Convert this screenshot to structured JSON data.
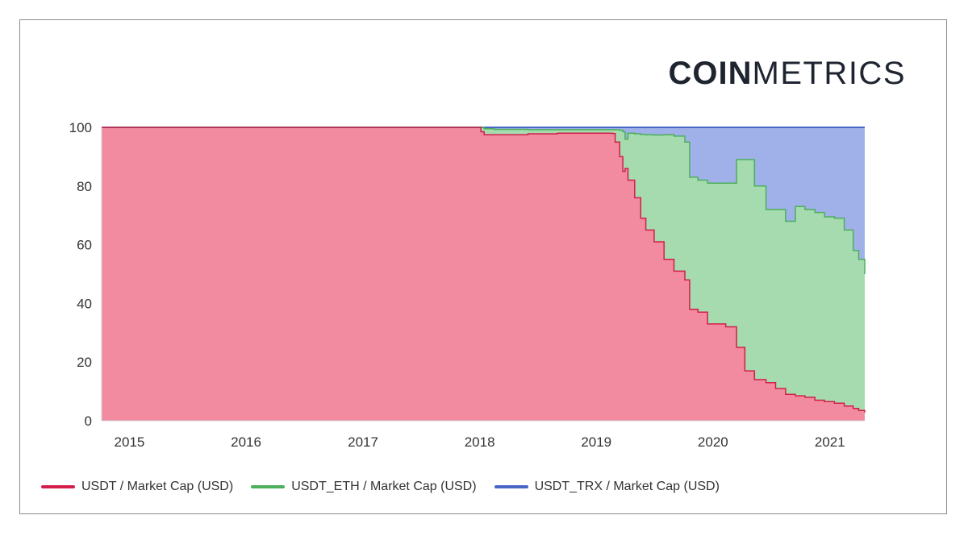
{
  "logo": {
    "bold": "COIN",
    "light": "METRICS"
  },
  "colors": {
    "usdt_fill": "#f28aa0",
    "usdt_line": "#d21e48",
    "eth_fill": "#a6dbb0",
    "eth_line": "#4caf5a",
    "trx_fill": "#9fb1e8",
    "trx_line": "#4a66c4",
    "watermark": "#bfe3c6"
  },
  "chart_data": {
    "type": "area",
    "stacked": true,
    "y_ticks": [
      "0",
      "20",
      "40",
      "60",
      "80",
      "100"
    ],
    "ylim": [
      0,
      100
    ],
    "x_ticks": [
      "2015",
      "2016",
      "2017",
      "2018",
      "2019",
      "2020",
      "2021"
    ],
    "xlim": [
      "2014-10-06",
      "2021-04-20"
    ],
    "grid": false,
    "legend_position": "bottom-left",
    "legend": [
      "USDT / Market Cap (USD)",
      "USDT_ETH / Market Cap (USD)",
      "USDT_TRX / Market Cap (USD)"
    ],
    "dates": [
      "2014-10-06",
      "2017-12-31",
      "2018-01-05",
      "2018-01-15",
      "2018-02-15",
      "2018-06-01",
      "2018-09-01",
      "2019-02-20",
      "2019-03-01",
      "2019-03-15",
      "2019-03-25",
      "2019-04-01",
      "2019-04-10",
      "2019-05-01",
      "2019-05-20",
      "2019-06-05",
      "2019-07-01",
      "2019-08-01",
      "2019-09-01",
      "2019-10-05",
      "2019-10-20",
      "2019-11-15",
      "2019-12-15",
      "2020-01-15",
      "2020-02-10",
      "2020-03-15",
      "2020-04-10",
      "2020-05-10",
      "2020-06-15",
      "2020-07-15",
      "2020-08-15",
      "2020-09-15",
      "2020-10-15",
      "2020-11-15",
      "2020-12-15",
      "2021-01-15",
      "2021-02-15",
      "2021-03-15",
      "2021-04-01",
      "2021-04-20"
    ],
    "usdt": [
      100,
      100,
      98.5,
      97.5,
      97.5,
      97.8,
      98,
      97.9,
      95,
      90,
      85,
      86,
      82,
      76,
      69,
      65,
      61,
      55,
      51,
      48,
      38,
      37,
      33,
      33,
      32,
      25,
      17,
      14,
      13,
      11,
      9,
      8.5,
      8,
      7,
      6.5,
      6,
      5,
      4.2,
      3.5,
      2.8
    ],
    "usdt_eth": [
      100,
      100,
      100,
      99.5,
      99.3,
      99.2,
      99.2,
      99.2,
      99.2,
      99.0,
      98.5,
      96,
      98,
      97.8,
      97.6,
      97.5,
      97.4,
      97.5,
      97,
      95,
      83,
      82,
      81,
      81,
      81,
      89,
      89,
      80,
      72,
      72,
      68,
      73,
      72,
      71,
      69.5,
      69,
      65,
      58,
      55,
      50
    ],
    "usdt_trx": [
      100,
      100,
      100,
      100,
      100,
      100,
      100,
      100,
      100,
      100,
      100,
      100,
      100,
      100,
      100,
      100,
      100,
      100,
      100,
      100,
      100,
      100,
      100,
      100,
      100,
      100,
      100,
      100,
      100,
      100,
      100,
      100,
      100,
      100,
      100,
      100,
      100,
      100,
      100,
      100
    ]
  }
}
